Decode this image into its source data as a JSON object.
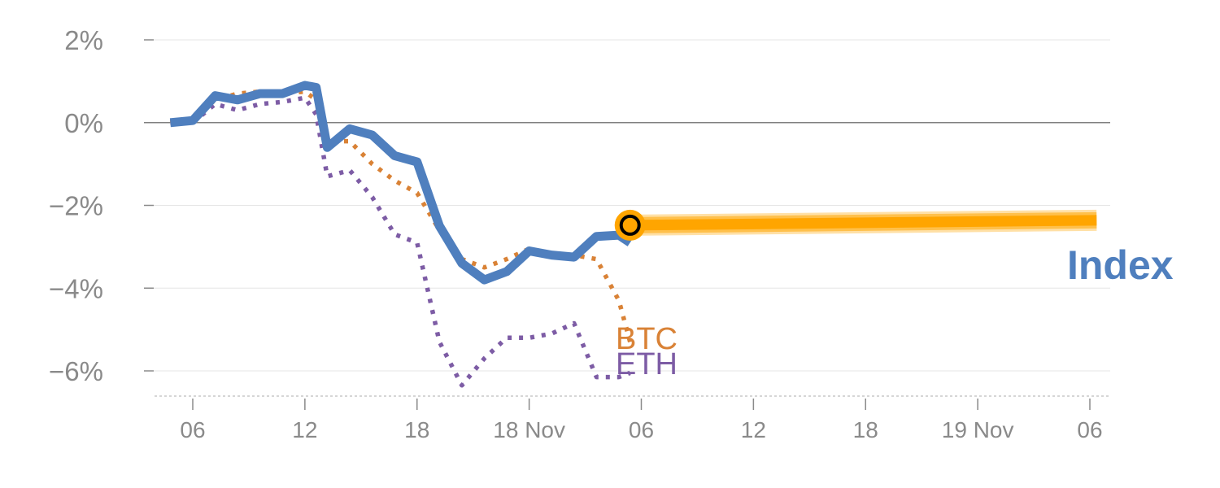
{
  "chart_data": {
    "type": "line",
    "ylim": [
      -6.6,
      2.0
    ],
    "yticks": [
      {
        "value": 2,
        "label": "2%"
      },
      {
        "value": 0,
        "label": "0%"
      },
      {
        "value": -2,
        "label": "−2%"
      },
      {
        "value": -4,
        "label": "−4%"
      },
      {
        "value": -6,
        "label": "−6%"
      }
    ],
    "xlim": [
      1,
      42.6
    ],
    "xticks": [
      {
        "x": 2,
        "label": "06"
      },
      {
        "x": 7,
        "label": "12"
      },
      {
        "x": 12,
        "label": "18"
      },
      {
        "x": 17,
        "label": "18 Nov"
      },
      {
        "x": 22,
        "label": "06"
      },
      {
        "x": 27,
        "label": "12"
      },
      {
        "x": 32,
        "label": "18"
      },
      {
        "x": 37,
        "label": "19 Nov"
      },
      {
        "x": 42,
        "label": "06"
      }
    ],
    "grid": true,
    "colors": {
      "index": "#4f7fbe",
      "btc": "#d98236",
      "eth": "#7d5ca5",
      "projection": "#ffa500",
      "axis_text": "#8a8a8a",
      "grid": "#e6e6e6",
      "zero_line": "#7f7f7f"
    },
    "series": [
      {
        "name": "Index",
        "style": "solid",
        "x": [
          1,
          2,
          3,
          4,
          5,
          6,
          7,
          7.5,
          8,
          9,
          10,
          11,
          12,
          13,
          14,
          15,
          16,
          17,
          18,
          19,
          20,
          21,
          21.5
        ],
        "y": [
          0.0,
          0.05,
          0.65,
          0.55,
          0.7,
          0.7,
          0.9,
          0.85,
          -0.6,
          -0.15,
          -0.3,
          -0.8,
          -0.95,
          -2.5,
          -3.4,
          -3.8,
          -3.6,
          -3.1,
          -3.2,
          -3.25,
          -2.75,
          -2.72,
          -2.9
        ]
      },
      {
        "name": "BTC",
        "style": "dotted",
        "x": [
          1,
          2,
          3,
          4,
          5,
          6,
          7,
          7.5,
          8,
          9,
          10,
          11,
          12,
          13,
          14,
          15,
          16,
          17,
          18,
          19,
          20,
          21,
          21.5
        ],
        "y": [
          0.0,
          0.1,
          0.55,
          0.7,
          0.75,
          0.7,
          0.75,
          0.55,
          -0.45,
          -0.45,
          -1.0,
          -1.4,
          -1.7,
          -2.6,
          -3.3,
          -3.5,
          -3.3,
          -3.05,
          -3.2,
          -3.2,
          -3.3,
          -4.3,
          -5.3
        ]
      },
      {
        "name": "ETH",
        "style": "dotted",
        "x": [
          1,
          2,
          3,
          4,
          5,
          6,
          7,
          7.5,
          8,
          9,
          10,
          11,
          12,
          13,
          14,
          15,
          16,
          17,
          18,
          19,
          20,
          21,
          21.5
        ],
        "y": [
          0.0,
          0.0,
          0.45,
          0.3,
          0.45,
          0.5,
          0.6,
          0.2,
          -1.3,
          -1.15,
          -1.8,
          -2.7,
          -2.9,
          -5.3,
          -6.35,
          -5.7,
          -5.2,
          -5.2,
          -5.1,
          -4.85,
          -6.15,
          -6.15,
          -6.05
        ]
      }
    ],
    "projection": {
      "x_start": 21.5,
      "y_start": -2.48,
      "x_end": 42.3,
      "y_end": -2.36
    },
    "current_point": {
      "x": 21.5,
      "y": -2.48
    }
  }
}
